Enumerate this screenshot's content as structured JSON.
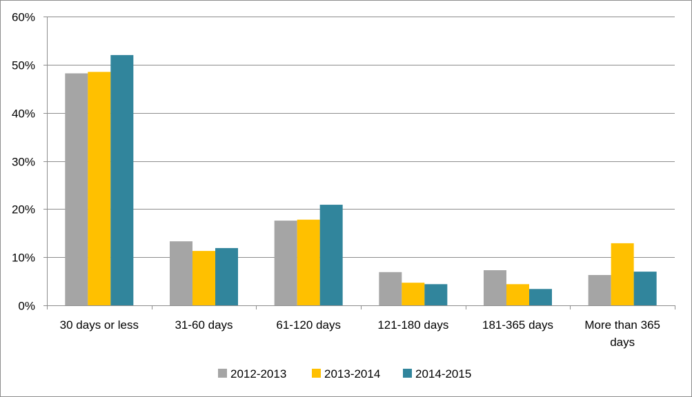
{
  "chart_data": {
    "type": "bar",
    "title": "",
    "xlabel": "",
    "ylabel": "",
    "categories": [
      [
        "30 days or less"
      ],
      [
        "31-60 days"
      ],
      [
        "61-120 days"
      ],
      [
        "121-180 days"
      ],
      [
        "181-365 days"
      ],
      [
        "More than 365",
        "days"
      ]
    ],
    "series": [
      {
        "name": "2012-2013",
        "color": "#a5a5a5",
        "values": [
          48.2,
          13.3,
          17.6,
          6.9,
          7.3,
          6.3
        ]
      },
      {
        "name": "2013-2014",
        "color": "#ffc000",
        "values": [
          48.5,
          11.3,
          17.8,
          4.7,
          4.4,
          12.9
        ]
      },
      {
        "name": "2014-2015",
        "color": "#31859c",
        "values": [
          52.0,
          11.9,
          20.9,
          4.4,
          3.4,
          7.0
        ]
      }
    ],
    "ylim": [
      0,
      60
    ],
    "yticks": [
      0,
      10,
      20,
      30,
      40,
      50,
      60
    ],
    "ytick_format": "{v}%",
    "grid": true,
    "legend_position": "bottom"
  }
}
